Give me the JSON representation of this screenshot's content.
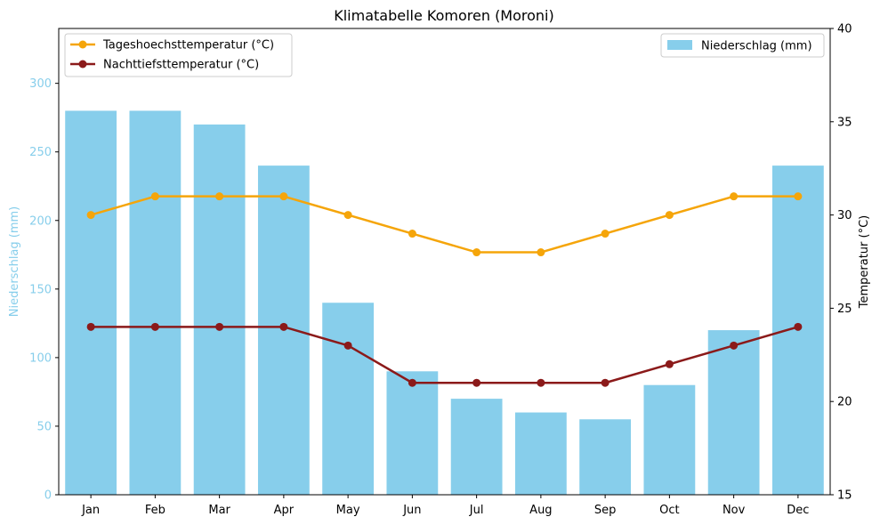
{
  "chart_data": {
    "type": "bar",
    "title": "Klimatabelle Komoren (Moroni)",
    "categories": [
      "Jan",
      "Feb",
      "Mar",
      "Apr",
      "May",
      "Jun",
      "Jul",
      "Aug",
      "Sep",
      "Oct",
      "Nov",
      "Dec"
    ],
    "bar_series": {
      "name": "Niederschlag (mm)",
      "color": "#87CEEB",
      "values": [
        280,
        280,
        270,
        240,
        140,
        90,
        70,
        60,
        55,
        80,
        120,
        240
      ]
    },
    "line_series": [
      {
        "name": "Tageshoechsttemperatur (°C)",
        "color": "#F5A50A",
        "values": [
          30,
          31,
          31,
          31,
          30,
          29,
          28,
          28,
          29,
          30,
          31,
          31
        ]
      },
      {
        "name": "Nachttiefsttemperatur (°C)",
        "color": "#8B1A1A",
        "values": [
          24,
          24,
          24,
          24,
          23,
          21,
          21,
          21,
          21,
          22,
          23,
          24
        ]
      }
    ],
    "y_left": {
      "label": "Niederschlag (mm)",
      "label_color": "#87CEEB",
      "range": [
        0,
        340
      ],
      "ticks": [
        0,
        50,
        100,
        150,
        200,
        250,
        300
      ]
    },
    "y_right": {
      "label": "Temperatur (°C)",
      "range": [
        15,
        40
      ],
      "ticks": [
        15,
        20,
        25,
        30,
        35,
        40
      ]
    },
    "legend_lines_position": "top-left",
    "legend_bars_position": "top-right",
    "grid": false
  }
}
